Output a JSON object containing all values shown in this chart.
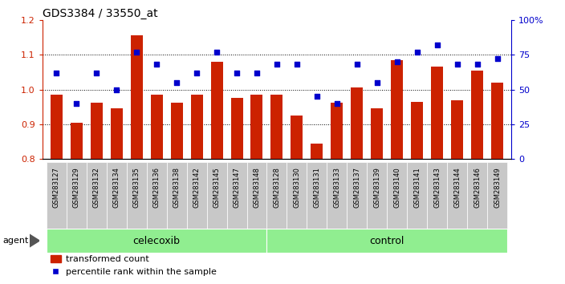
{
  "title": "GDS3384 / 33550_at",
  "samples": [
    "GSM283127",
    "GSM283129",
    "GSM283132",
    "GSM283134",
    "GSM283135",
    "GSM283136",
    "GSM283138",
    "GSM283142",
    "GSM283145",
    "GSM283147",
    "GSM283148",
    "GSM283128",
    "GSM283130",
    "GSM283131",
    "GSM283133",
    "GSM283137",
    "GSM283139",
    "GSM283140",
    "GSM283141",
    "GSM283143",
    "GSM283144",
    "GSM283146",
    "GSM283149"
  ],
  "bar_values": [
    0.985,
    0.905,
    0.963,
    0.945,
    1.155,
    0.985,
    0.963,
    0.985,
    1.08,
    0.975,
    0.985,
    0.985,
    0.925,
    0.845,
    0.963,
    1.005,
    0.945,
    1.085,
    0.965,
    1.065,
    0.97,
    1.055,
    1.02
  ],
  "dot_values_pct": [
    62,
    40,
    62,
    50,
    77,
    68,
    55,
    62,
    77,
    62,
    62,
    68,
    68,
    45,
    40,
    68,
    55,
    70,
    77,
    82,
    68,
    68,
    72
  ],
  "celecoxib_count": 11,
  "control_count": 12,
  "ylim_left": [
    0.8,
    1.2
  ],
  "ylim_right": [
    0,
    100
  ],
  "yticks_left": [
    0.8,
    0.9,
    1.0,
    1.1,
    1.2
  ],
  "yticks_right": [
    0,
    25,
    50,
    75,
    100
  ],
  "ytick_labels_right": [
    "0",
    "25",
    "50",
    "75",
    "100%"
  ],
  "bar_color": "#CC2200",
  "dot_color": "#0000CC",
  "bg_color": "#FFFFFF",
  "tick_bg_color": "#C8C8C8",
  "celecoxib_bg": "#90EE90",
  "control_bg": "#90EE90",
  "agent_label": "agent",
  "celecoxib_label": "celecoxib",
  "control_label": "control",
  "legend_bar": "transformed count",
  "legend_dot": "percentile rank within the sample"
}
